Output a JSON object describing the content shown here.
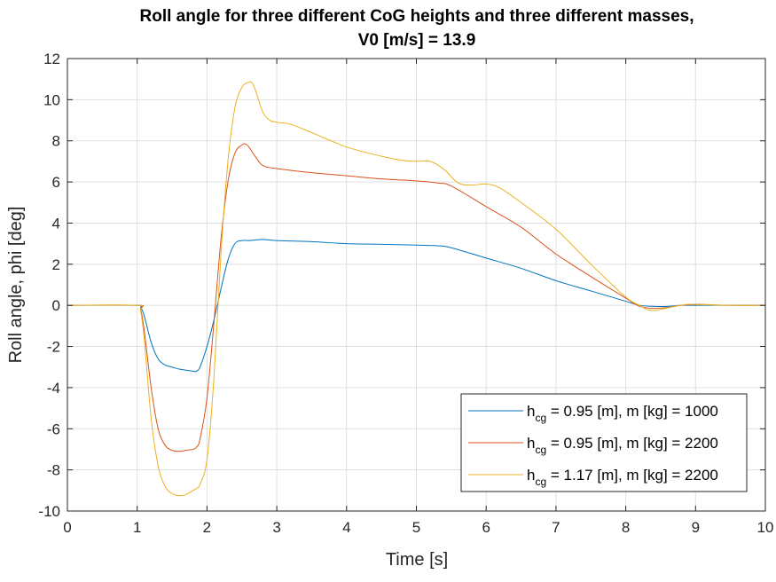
{
  "chart_data": {
    "type": "line",
    "title_line1": "Roll angle for three different CoG heights and three different masses,",
    "title_line2": "V0 [m/s] = 13.9",
    "xlabel": "Time [s]",
    "ylabel": "Roll angle, phi [deg]",
    "xlim": [
      0,
      10
    ],
    "ylim": [
      -10,
      12
    ],
    "xticks": [
      "0",
      "1",
      "2",
      "3",
      "4",
      "5",
      "6",
      "7",
      "8",
      "9",
      "10"
    ],
    "yticks": [
      "-10",
      "-8",
      "-6",
      "-4",
      "-2",
      "0",
      "2",
      "4",
      "6",
      "8",
      "10",
      "12"
    ],
    "grid": true,
    "legend_position": "bottom-right",
    "series": [
      {
        "name_base": "h",
        "name_sub": "cg",
        "name_rest": " = 0.95 [m], m [kg] = 1000",
        "color": "#0072bd",
        "x": [
          0,
          1,
          1.05,
          1.1,
          1.2,
          1.3,
          1.4,
          1.5,
          1.6,
          1.7,
          1.8,
          1.85,
          1.9,
          2.0,
          2.1,
          2.2,
          2.3,
          2.4,
          2.5,
          2.6,
          2.8,
          3.0,
          3.5,
          4.0,
          4.5,
          5.0,
          5.3,
          5.5,
          6.0,
          6.5,
          7.0,
          7.5,
          8.0,
          8.2,
          8.4,
          8.6,
          8.8,
          9.0,
          9.5,
          10
        ],
        "y": [
          0,
          0,
          -0.1,
          -0.5,
          -1.8,
          -2.6,
          -2.9,
          -3.0,
          -3.1,
          -3.15,
          -3.2,
          -3.2,
          -3.0,
          -2.0,
          -0.7,
          0.8,
          2.2,
          3.0,
          3.15,
          3.15,
          3.2,
          3.15,
          3.1,
          3.0,
          2.97,
          2.93,
          2.9,
          2.8,
          2.3,
          1.8,
          1.2,
          0.7,
          0.2,
          0.0,
          -0.05,
          -0.05,
          0.0,
          0.0,
          0.0,
          0
        ]
      },
      {
        "name_base": "h",
        "name_sub": "cg",
        "name_rest": " = 0.95 [m], m [kg] = 2200",
        "color": "#d95319",
        "x": [
          0,
          1,
          1.05,
          1.1,
          1.2,
          1.3,
          1.4,
          1.5,
          1.6,
          1.7,
          1.8,
          1.85,
          1.9,
          2.0,
          2.1,
          2.2,
          2.3,
          2.4,
          2.5,
          2.55,
          2.6,
          2.7,
          2.8,
          3.0,
          3.5,
          4.0,
          4.5,
          5.0,
          5.3,
          5.5,
          6.0,
          6.5,
          7.0,
          7.5,
          8.0,
          8.2,
          8.4,
          8.6,
          8.8,
          9.0,
          9.2,
          9.5,
          10
        ],
        "y": [
          0,
          0,
          -0.2,
          -1.2,
          -4.0,
          -6.0,
          -6.8,
          -7.05,
          -7.1,
          -7.05,
          -7.0,
          -6.9,
          -6.5,
          -4.5,
          -0.8,
          3.2,
          6.0,
          7.4,
          7.8,
          7.85,
          7.7,
          7.2,
          6.8,
          6.65,
          6.45,
          6.3,
          6.15,
          6.05,
          5.95,
          5.8,
          4.8,
          3.8,
          2.5,
          1.4,
          0.35,
          -0.05,
          -0.15,
          -0.1,
          0.0,
          0.05,
          0.03,
          0.0,
          0
        ]
      },
      {
        "name_base": "h",
        "name_sub": "cg",
        "name_rest": " = 1.17 [m], m [kg] = 2200",
        "color": "#edb120",
        "x": [
          0,
          1,
          1.05,
          1.1,
          1.2,
          1.3,
          1.4,
          1.5,
          1.6,
          1.7,
          1.8,
          1.85,
          1.9,
          2.0,
          2.1,
          2.2,
          2.3,
          2.4,
          2.5,
          2.6,
          2.65,
          2.7,
          2.8,
          2.9,
          3.0,
          3.2,
          3.5,
          4.0,
          4.5,
          4.8,
          5.0,
          5.2,
          5.4,
          5.6,
          5.8,
          6.0,
          6.2,
          6.5,
          7.0,
          7.5,
          8.0,
          8.2,
          8.3,
          8.4,
          8.5,
          8.7,
          8.9,
          9.1,
          9.5,
          10
        ],
        "y": [
          0,
          0,
          -0.3,
          -1.6,
          -5.5,
          -7.8,
          -8.8,
          -9.15,
          -9.25,
          -9.2,
          -9.0,
          -8.9,
          -8.7,
          -7.5,
          -3.5,
          2.5,
          7.0,
          9.6,
          10.6,
          10.85,
          10.8,
          10.4,
          9.4,
          9.0,
          8.9,
          8.8,
          8.4,
          7.7,
          7.25,
          7.05,
          7.0,
          7.0,
          6.6,
          5.95,
          5.85,
          5.9,
          5.7,
          5.0,
          3.7,
          2.0,
          0.4,
          0.0,
          -0.2,
          -0.25,
          -0.2,
          -0.05,
          0.05,
          0.03,
          0.0,
          0
        ]
      }
    ]
  }
}
